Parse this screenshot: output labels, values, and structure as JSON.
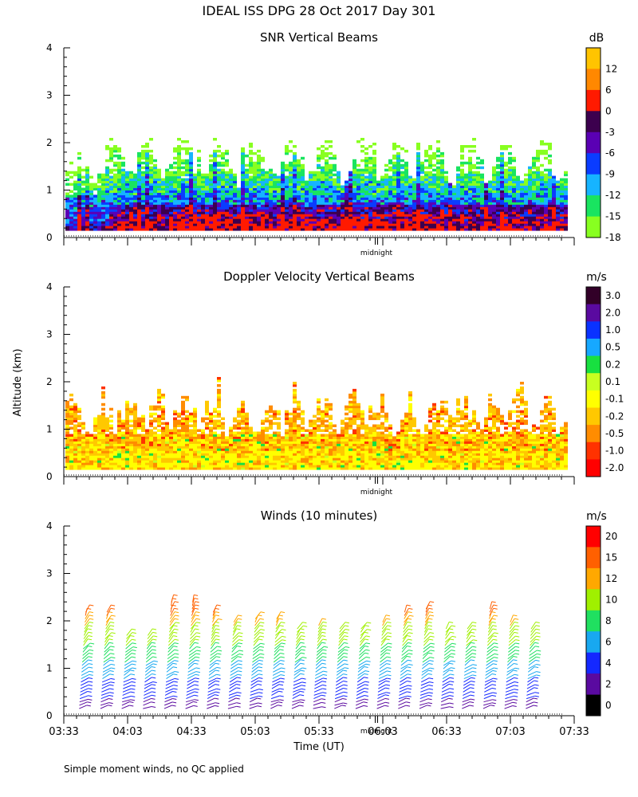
{
  "title": "IDEAL ISS DPG  28 Oct 2017 Day 301",
  "ylabel": "Altitude (km)",
  "xlabel": "Time (UT)",
  "midnight_label": "midnight",
  "footnote": "Simple moment winds, no QC applied",
  "chart_data": [
    {
      "type": "heatmap",
      "title": "SNR Vertical Beams",
      "xlabel": "",
      "ylabel": "Altitude (km)",
      "ylim": [
        0,
        4
      ],
      "yticks": [
        "0",
        "1",
        "2",
        "3",
        "4"
      ],
      "colorbar_title": "dB",
      "colorbar_labels": [
        "12",
        "6",
        "0",
        "-3",
        "-6",
        "-9",
        "-12",
        "-15",
        "-18"
      ],
      "colorbar_colors": [
        "#ffc400",
        "#ff8800",
        "#ff1a00",
        "#3c004e",
        "#5a00b4",
        "#0a3cff",
        "#16b4ff",
        "#19e460",
        "#88ff20"
      ],
      "data_altitude_range_km": [
        0.15,
        2.0
      ],
      "data_time_range": [
        "03:33",
        "07:13"
      ]
    },
    {
      "type": "heatmap",
      "title": "Doppler Velocity Vertical Beams",
      "xlabel": "",
      "ylabel": "Altitude (km)",
      "ylim": [
        0,
        4
      ],
      "yticks": [
        "0",
        "1",
        "2",
        "3",
        "4"
      ],
      "colorbar_title": "m/s",
      "colorbar_labels": [
        "3.0",
        "2.0",
        "1.0",
        "0.5",
        "0.2",
        "0.1",
        "-0.1",
        "-0.2",
        "-0.5",
        "-1.0",
        "-2.0"
      ],
      "colorbar_colors": [
        "#320028",
        "#5a0aa0",
        "#0a32ff",
        "#16a8ff",
        "#18e040",
        "#c8ff20",
        "#ffff00",
        "#ffc800",
        "#ff8c00",
        "#ff3200",
        "#ff0000"
      ],
      "data_altitude_range_km": [
        0.15,
        1.8
      ],
      "data_time_range": [
        "03:33",
        "07:13"
      ]
    },
    {
      "type": "wind_barbs",
      "title": "Winds (10 minutes)",
      "xlabel": "Time (UT)",
      "ylabel": "Altitude (km)",
      "ylim": [
        0,
        4
      ],
      "yticks": [
        "0",
        "1",
        "2",
        "3",
        "4"
      ],
      "xticks": [
        "03:33",
        "04:03",
        "04:33",
        "05:03",
        "05:33",
        "06:03",
        "06:33",
        "07:03",
        "07:33"
      ],
      "colorbar_title": "m/s",
      "colorbar_labels": [
        "20",
        "15",
        "12",
        "10",
        "8",
        "6",
        "4",
        "2",
        "0"
      ],
      "colorbar_colors": [
        "#ff0000",
        "#ff6000",
        "#ffa800",
        "#a0f000",
        "#20e060",
        "#18a8f0",
        "#1428ff",
        "#5a0aa0",
        "#000000"
      ],
      "profile_times": [
        "03:40",
        "03:50",
        "04:00",
        "04:10",
        "04:20",
        "04:30",
        "04:40",
        "04:50",
        "05:00",
        "05:10",
        "05:20",
        "05:30",
        "05:40",
        "05:50",
        "06:00",
        "06:10",
        "06:20",
        "06:30",
        "06:40",
        "06:50",
        "07:00",
        "07:10"
      ],
      "profile_top_km": [
        2.2,
        2.25,
        1.7,
        1.75,
        2.4,
        2.4,
        2.2,
        2.0,
        2.05,
        2.05,
        1.9,
        1.95,
        1.9,
        1.9,
        2.0,
        2.2,
        2.3,
        1.9,
        1.9,
        2.3,
        2.0,
        1.9
      ]
    }
  ]
}
